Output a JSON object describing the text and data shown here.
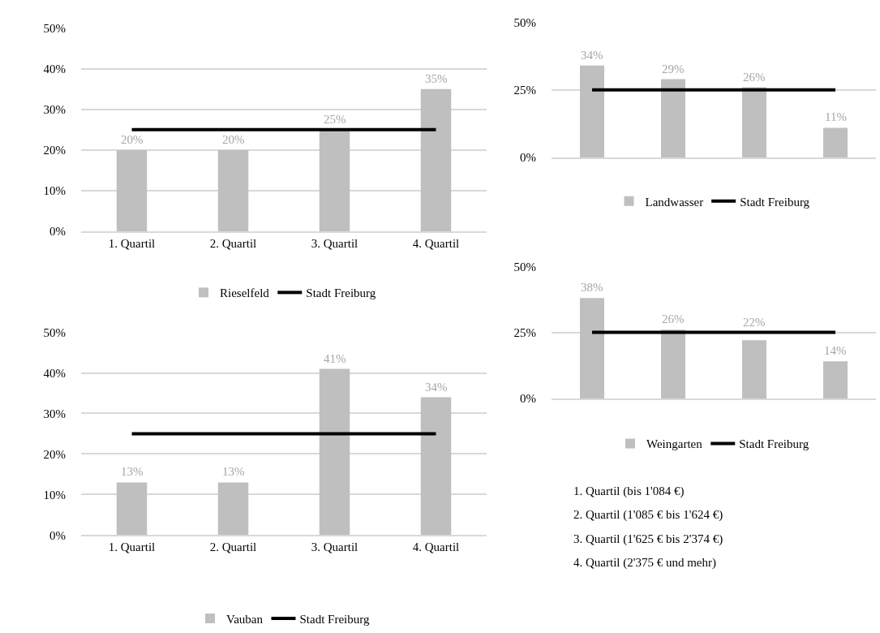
{
  "chart_data": [
    {
      "type": "bar",
      "categories": [
        "1. Quartil",
        "2. Quartil",
        "3. Quartil",
        "4. Quartil"
      ],
      "ylim": [
        0,
        50
      ],
      "yticks": [
        {
          "value": 0,
          "label": "0%"
        },
        {
          "value": 10,
          "label": "10%"
        },
        {
          "value": 20,
          "label": "20%"
        },
        {
          "value": 30,
          "label": "30%"
        },
        {
          "value": 40,
          "label": "40%"
        },
        {
          "value": 50,
          "label": "50%"
        }
      ],
      "grid": "y",
      "legend": "bottom",
      "series": [
        {
          "name": "Rieselfeld",
          "type": "bar",
          "color": "#bfbfbf",
          "values": [
            20,
            20,
            25,
            35
          ],
          "value_labels": [
            "20%",
            "20%",
            "25%",
            "35%"
          ]
        },
        {
          "name": "Stadt Freiburg",
          "type": "line",
          "color": "#000000",
          "values": [
            25,
            25,
            25,
            25
          ]
        }
      ]
    },
    {
      "type": "bar",
      "categories": [
        null,
        null,
        null,
        null
      ],
      "ylim": [
        0,
        50
      ],
      "yticks": [
        {
          "value": 0,
          "label": "0%"
        },
        {
          "value": 25,
          "label": "25%"
        },
        {
          "value": 50,
          "label": "50%"
        }
      ],
      "grid": "y",
      "legend": "bottom",
      "series": [
        {
          "name": "Landwasser",
          "type": "bar",
          "color": "#bfbfbf",
          "values": [
            34,
            29,
            26,
            11
          ],
          "value_labels": [
            "34%",
            "29%",
            "26%",
            "11%"
          ]
        },
        {
          "name": "Stadt Freiburg",
          "type": "line",
          "color": "#000000",
          "values": [
            25,
            25,
            25,
            25
          ]
        }
      ]
    },
    {
      "type": "bar",
      "categories": [
        "1. Quartil",
        "2. Quartil",
        "3. Quartil",
        "4. Quartil"
      ],
      "ylim": [
        0,
        50
      ],
      "yticks": [
        {
          "value": 0,
          "label": "0%"
        },
        {
          "value": 10,
          "label": "10%"
        },
        {
          "value": 20,
          "label": "20%"
        },
        {
          "value": 30,
          "label": "30%"
        },
        {
          "value": 40,
          "label": "40%"
        },
        {
          "value": 50,
          "label": "50%"
        }
      ],
      "grid": "y",
      "legend": "bottom",
      "series": [
        {
          "name": "Vauban",
          "type": "bar",
          "color": "#bfbfbf",
          "values": [
            13,
            13,
            41,
            34
          ],
          "value_labels": [
            "13%",
            "13%",
            "41%",
            "34%"
          ]
        },
        {
          "name": "Stadt Freiburg",
          "type": "line",
          "color": "#000000",
          "values": [
            25,
            25,
            25,
            25
          ]
        }
      ]
    },
    {
      "type": "bar",
      "categories": [
        null,
        null,
        null,
        null
      ],
      "ylim": [
        0,
        50
      ],
      "yticks": [
        {
          "value": 0,
          "label": "0%"
        },
        {
          "value": 25,
          "label": "25%"
        },
        {
          "value": 50,
          "label": "50%"
        }
      ],
      "grid": "y",
      "legend": "bottom",
      "series": [
        {
          "name": "Weingarten",
          "type": "bar",
          "color": "#bfbfbf",
          "values": [
            38,
            26,
            22,
            14
          ],
          "value_labels": [
            "38%",
            "26%",
            "22%",
            "14%"
          ]
        },
        {
          "name": "Stadt Freiburg",
          "type": "line",
          "color": "#000000",
          "values": [
            25,
            25,
            25,
            25
          ]
        }
      ]
    },
    {
      "type": "other",
      "annotations": [
        "1. Quartil (bis 1'084 €)",
        "2. Quartil (1'085 € bis 1'624 €)",
        "3. Quartil (1'625 € bis 2'374 €)",
        "4. Quartil (2'375 € und mehr)"
      ]
    }
  ]
}
